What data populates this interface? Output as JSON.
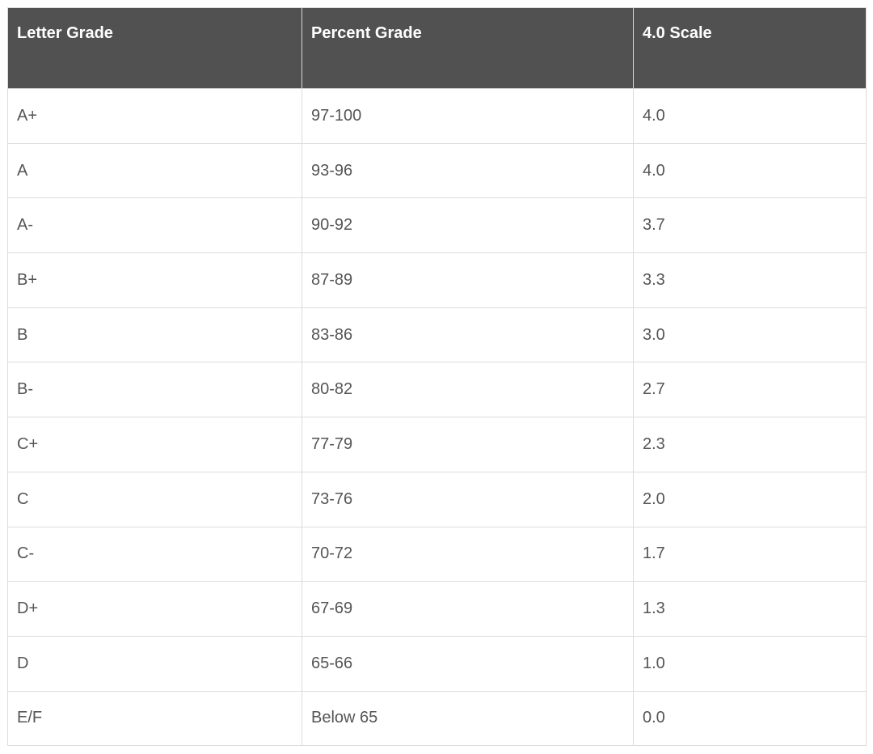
{
  "table": {
    "headers": [
      "Letter Grade",
      "Percent Grade",
      "4.0 Scale"
    ],
    "rows": [
      [
        "A+",
        "97-100",
        "4.0"
      ],
      [
        "A",
        "93-96",
        "4.0"
      ],
      [
        "A-",
        "90-92",
        "3.7"
      ],
      [
        "B+",
        "87-89",
        "3.3"
      ],
      [
        "B",
        "83-86",
        "3.0"
      ],
      [
        "B-",
        "80-82",
        "2.7"
      ],
      [
        "C+",
        "77-79",
        "2.3"
      ],
      [
        "C",
        "73-76",
        "2.0"
      ],
      [
        "C-",
        "70-72",
        "1.7"
      ],
      [
        "D+",
        "67-69",
        "1.3"
      ],
      [
        "D",
        "65-66",
        "1.0"
      ],
      [
        "E/F",
        "Below 65",
        "0.0"
      ]
    ]
  },
  "colors": {
    "header_bg": "#515151",
    "header_text": "#ffffff",
    "body_text": "#555555",
    "border": "#dcdcdc"
  }
}
